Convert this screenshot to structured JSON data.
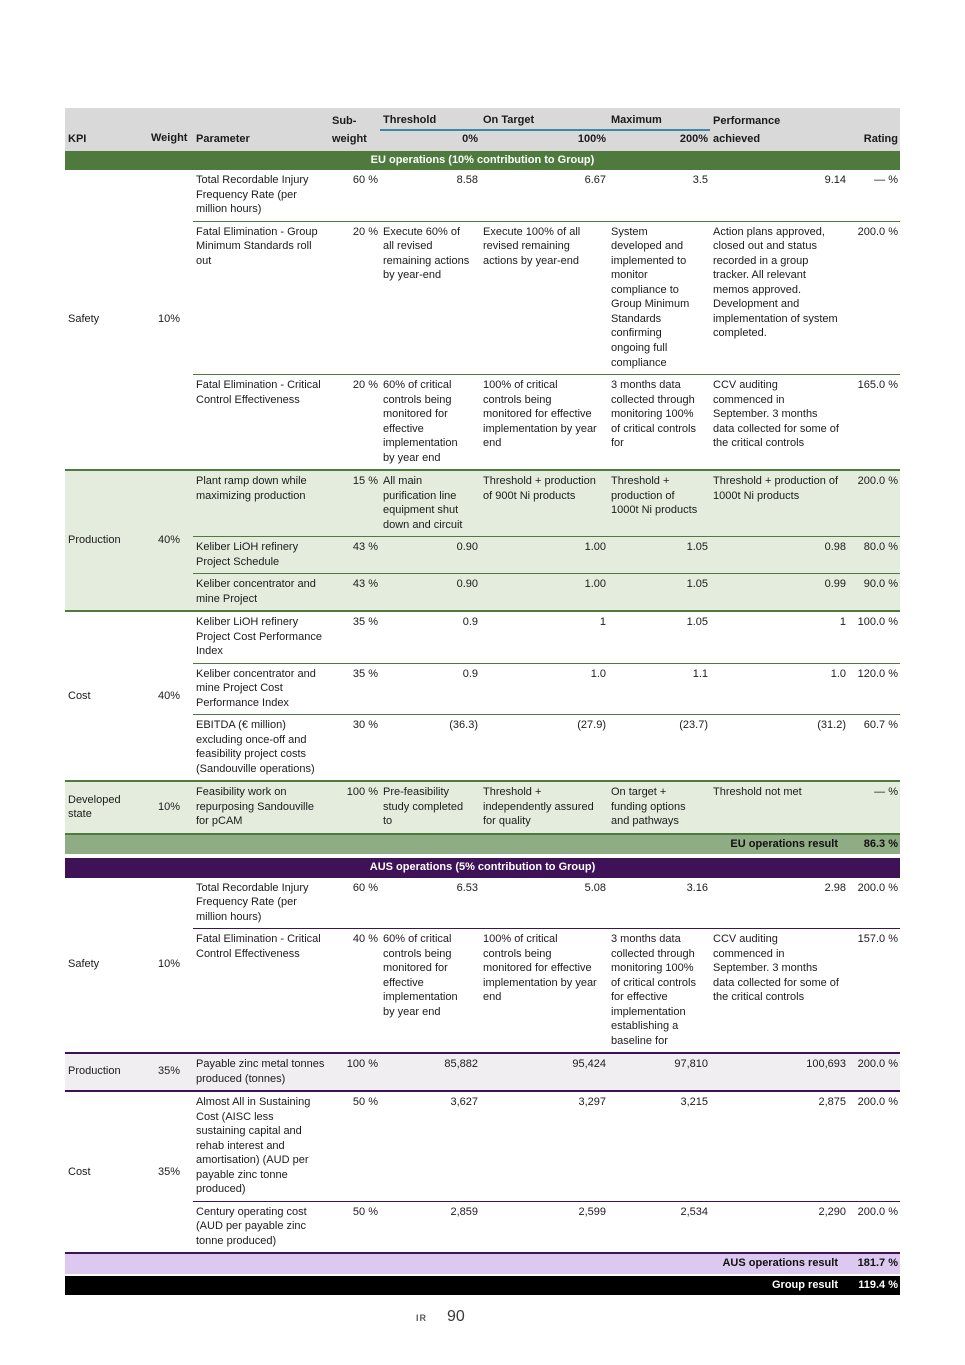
{
  "colors": {
    "header_bg": "#d9d9d9",
    "header_rule": "#3a89a5",
    "eu_band": "#4e7b3d",
    "eu_shade": "#e3ecdd",
    "eu_result_bg": "#8fad85",
    "aus_band": "#3f1156",
    "aus_shade": "#f0eef1",
    "aus_result_bg": "#ddc9f0",
    "group_result_bg": "#000000"
  },
  "footer": {
    "ir_label": "IR",
    "page_number": "90"
  },
  "table": {
    "header": {
      "kpi": "KPI",
      "weight": "Weight",
      "parameter": "Parameter",
      "sub_weight_line1": "Sub-",
      "sub_weight_line2": "weight",
      "threshold": "Threshold",
      "threshold_pct": "0%",
      "on_target": "On Target",
      "on_target_pct": "100%",
      "maximum": "Maximum",
      "maximum_pct": "200%",
      "performance_line1": "Performance",
      "performance_line2": "achieved",
      "rating": "Rating"
    },
    "sections": [
      {
        "id": "eu",
        "title": "EU operations (10% contribution to Group)",
        "result": {
          "label": "EU operations result",
          "value": "86.3 %"
        },
        "groups": [
          {
            "kpi": "Safety",
            "weight": "10%",
            "shaded": false,
            "rows": [
              {
                "parameter": "Total Recordable Injury Frequency Rate (per million hours)",
                "sub_weight": "60 %",
                "threshold": {
                  "text": "8.58",
                  "numeric": true
                },
                "on_target": {
                  "text": "6.67",
                  "numeric": true
                },
                "maximum": {
                  "text": "3.5",
                  "numeric": true
                },
                "performance": {
                  "text": "9.14",
                  "numeric": true
                },
                "rating": "— %"
              },
              {
                "parameter": "Fatal Elimination - Group Minimum Standards roll out",
                "sub_weight": "20 %",
                "threshold": {
                  "text": "Execute 60% of all revised remaining actions by year-end",
                  "numeric": false
                },
                "on_target": {
                  "text": "Execute 100% of all revised remaining actions by year-end",
                  "numeric": false
                },
                "maximum": {
                  "text": "System developed and implemented to monitor compliance to Group Minimum Standards confirming ongoing full compliance",
                  "numeric": false
                },
                "performance": {
                  "text": "Action plans approved, closed out and status recorded in a group tracker. All relevant memos approved. Development and implementation of system completed.",
                  "numeric": false
                },
                "rating": "200.0 %"
              },
              {
                "parameter": "Fatal Elimination - Critical Control Effectiveness",
                "sub_weight": "20 %",
                "threshold": {
                  "text": "60% of critical controls being monitored for effective implementation by year end",
                  "numeric": false
                },
                "on_target": {
                  "text": "100% of critical controls being monitored for effective implementation by year end",
                  "numeric": false
                },
                "maximum": {
                  "text": "3 months data collected through monitoring 100% of critical controls for",
                  "numeric": false
                },
                "performance": {
                  "text": "CCV auditing commenced in September. 3 months data collected for some of the critical controls",
                  "numeric": false
                },
                "rating": "165.0 %"
              }
            ]
          },
          {
            "kpi": "Production",
            "weight": "40%",
            "shaded": true,
            "rows": [
              {
                "parameter": "Plant ramp down while maximizing production",
                "sub_weight": "15 %",
                "threshold": {
                  "text": "All main purification line equipment shut down and circuit",
                  "numeric": false
                },
                "on_target": {
                  "text": "Threshold + production of 900t Ni products",
                  "numeric": false
                },
                "maximum": {
                  "text": "Threshold + production of 1000t Ni products",
                  "numeric": false
                },
                "performance": {
                  "text": "Threshold + production of 1000t Ni products",
                  "numeric": false
                },
                "rating": "200.0 %"
              },
              {
                "parameter": "Keliber LiOH refinery Project Schedule",
                "sub_weight": "43 %",
                "threshold": {
                  "text": "0.90",
                  "numeric": true
                },
                "on_target": {
                  "text": "1.00",
                  "numeric": true
                },
                "maximum": {
                  "text": "1.05",
                  "numeric": true
                },
                "performance": {
                  "text": "0.98",
                  "numeric": true
                },
                "rating": "80.0 %"
              },
              {
                "parameter": "Keliber concentrator and mine Project",
                "sub_weight": "43 %",
                "threshold": {
                  "text": "0.90",
                  "numeric": true
                },
                "on_target": {
                  "text": "1.00",
                  "numeric": true
                },
                "maximum": {
                  "text": "1.05",
                  "numeric": true
                },
                "performance": {
                  "text": "0.99",
                  "numeric": true
                },
                "rating": "90.0 %"
              }
            ]
          },
          {
            "kpi": "Cost",
            "weight": "40%",
            "shaded": false,
            "rows": [
              {
                "parameter": "Keliber LiOH refinery Project Cost Performance Index",
                "sub_weight": "35 %",
                "threshold": {
                  "text": "0.9",
                  "numeric": true
                },
                "on_target": {
                  "text": "1",
                  "numeric": true
                },
                "maximum": {
                  "text": "1.05",
                  "numeric": true
                },
                "performance": {
                  "text": "1",
                  "numeric": true
                },
                "rating": "100.0 %"
              },
              {
                "parameter": "Keliber concentrator and mine Project Cost Performance Index",
                "sub_weight": "35 %",
                "threshold": {
                  "text": "0.9",
                  "numeric": true
                },
                "on_target": {
                  "text": "1.0",
                  "numeric": true
                },
                "maximum": {
                  "text": "1.1",
                  "numeric": true
                },
                "performance": {
                  "text": "1.0",
                  "numeric": true
                },
                "rating": "120.0 %"
              },
              {
                "parameter": "EBITDA (€ million) excluding once-off and feasibility project costs (Sandouville operations)",
                "sub_weight": "30 %",
                "threshold": {
                  "text": "(36.3)",
                  "numeric": true
                },
                "on_target": {
                  "text": "(27.9)",
                  "numeric": true
                },
                "maximum": {
                  "text": "(23.7)",
                  "numeric": true
                },
                "performance": {
                  "text": "(31.2)",
                  "numeric": true
                },
                "rating": "60.7 %"
              }
            ]
          },
          {
            "kpi": "Developed state",
            "weight": "10%",
            "shaded": true,
            "rows": [
              {
                "parameter": "Feasibility work on repurposing Sandouville for pCAM",
                "sub_weight": "100 %",
                "threshold": {
                  "text": "Pre-feasibility study completed to",
                  "numeric": false
                },
                "on_target": {
                  "text": "Threshold + independently assured for quality",
                  "numeric": false
                },
                "maximum": {
                  "text": "On target + funding options and pathways",
                  "numeric": false
                },
                "performance": {
                  "text": "Threshold not met",
                  "numeric": false
                },
                "rating": "— %"
              }
            ]
          }
        ]
      },
      {
        "id": "aus",
        "title": "AUS operations  (5% contribution to Group)",
        "result": {
          "label": "AUS operations result",
          "value": "181.7 %"
        },
        "groups": [
          {
            "kpi": "Safety",
            "weight": "10%",
            "shaded": false,
            "rows": [
              {
                "parameter": "Total Recordable Injury Frequency Rate (per million hours)",
                "sub_weight": "60 %",
                "threshold": {
                  "text": "6.53",
                  "numeric": true
                },
                "on_target": {
                  "text": "5.08",
                  "numeric": true
                },
                "maximum": {
                  "text": "3.16",
                  "numeric": true
                },
                "performance": {
                  "text": "2.98",
                  "numeric": true
                },
                "rating": "200.0 %"
              },
              {
                "parameter": "Fatal Elimination - Critical Control Effectiveness",
                "sub_weight": "40 %",
                "threshold": {
                  "text": "60% of critical controls being monitored for effective implementation by year end",
                  "numeric": false
                },
                "on_target": {
                  "text": "100% of critical controls being monitored for effective implementation by year end",
                  "numeric": false
                },
                "maximum": {
                  "text": "3 months data collected through monitoring 100% of critical controls for effective implementation establishing a baseline for",
                  "numeric": false
                },
                "performance": {
                  "text": "CCV auditing commenced in September. 3 months data collected for some of the critical controls",
                  "numeric": false
                },
                "rating": "157.0 %"
              }
            ]
          },
          {
            "kpi": "Production",
            "weight": "35%",
            "shaded": true,
            "rows": [
              {
                "parameter": "Payable zinc metal tonnes produced (tonnes)",
                "sub_weight": "100 %",
                "threshold": {
                  "text": "85,882",
                  "numeric": true
                },
                "on_target": {
                  "text": "95,424",
                  "numeric": true
                },
                "maximum": {
                  "text": "97,810",
                  "numeric": true
                },
                "performance": {
                  "text": "100,693",
                  "numeric": true
                },
                "rating": "200.0 %"
              }
            ]
          },
          {
            "kpi": "Cost",
            "weight": "35%",
            "shaded": false,
            "rows": [
              {
                "parameter": "Almost All in Sustaining Cost (AISC less sustaining capital and rehab interest and amortisation) (AUD per payable zinc tonne produced)",
                "sub_weight": "50 %",
                "threshold": {
                  "text": "3,627",
                  "numeric": true
                },
                "on_target": {
                  "text": "3,297",
                  "numeric": true
                },
                "maximum": {
                  "text": "3,215",
                  "numeric": true
                },
                "performance": {
                  "text": "2,875",
                  "numeric": true
                },
                "rating": "200.0 %"
              },
              {
                "parameter": "Century operating cost (AUD per payable zinc tonne produced)",
                "sub_weight": "50 %",
                "threshold": {
                  "text": "2,859",
                  "numeric": true
                },
                "on_target": {
                  "text": "2,599",
                  "numeric": true
                },
                "maximum": {
                  "text": "2,534",
                  "numeric": true
                },
                "performance": {
                  "text": "2,290",
                  "numeric": true
                },
                "rating": "200.0 %"
              }
            ]
          }
        ]
      }
    ],
    "group_result": {
      "label": "Group result",
      "value": "119.4 %"
    }
  }
}
